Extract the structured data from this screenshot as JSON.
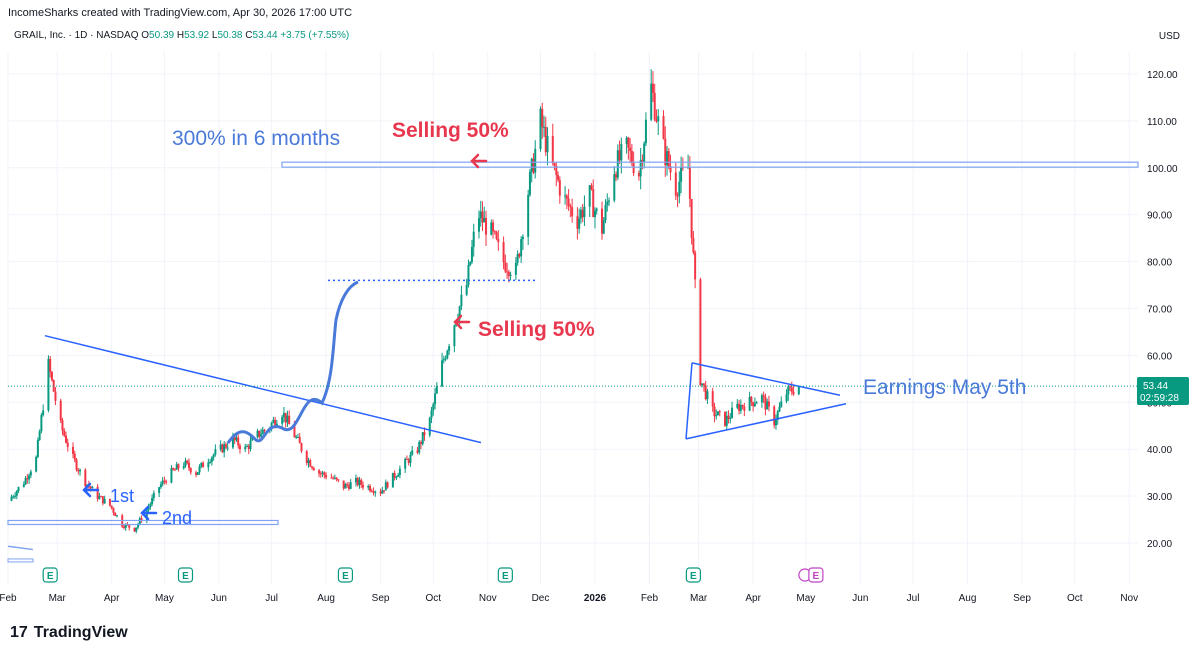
{
  "header": {
    "credit": "IncomeSharks created with TradingView.com, Apr 30, 2026 17:00 UTC"
  },
  "legend": {
    "symbol": "GRAIL, Inc. · 1D · NASDAQ",
    "open_label": "O",
    "open": "50.39",
    "high_label": "H",
    "high": "53.92",
    "low_label": "L",
    "low": "50.38",
    "close_label": "C",
    "close": "53.44",
    "change": "+3.75 (+7.55%)"
  },
  "currency": "USD",
  "price_tag": {
    "price": "53.44",
    "countdown": "02:59:28"
  },
  "annotations": {
    "gain": "300% in 6 months",
    "sell_top": "Selling 50%",
    "sell_mid": "Selling 50%",
    "first": "1st",
    "second": "2nd",
    "earnings": "Earnings May 5th"
  },
  "footer": {
    "logo": "17",
    "brand": "TradingView"
  },
  "colors": {
    "up": "#089981",
    "down": "#f23645",
    "trend": "#2962ff",
    "note_blue": "#4a7ad9",
    "note_red": "#e8384f",
    "earn_purple": "#c042c4"
  },
  "chart_data": {
    "type": "candlestick",
    "title": "",
    "xlabel": "",
    "ylabel": "",
    "ylim": [
      15,
      125
    ],
    "y_ticks": [
      "20.00",
      "30.00",
      "40.00",
      "50.00",
      "60.00",
      "70.00",
      "80.00",
      "90.00",
      "100.00",
      "110.00",
      "120.00"
    ],
    "x_ticks": [
      "Feb",
      "Mar",
      "Apr",
      "May",
      "Jun",
      "Jul",
      "Aug",
      "Sep",
      "Oct",
      "Nov",
      "Dec",
      "2026",
      "Feb",
      "Mar",
      "Apr",
      "May",
      "Jun",
      "Jul",
      "Aug",
      "Sep",
      "Oct",
      "Nov"
    ],
    "x_tick_dates": [
      "2025-02-01",
      "2025-03-01",
      "2025-04-01",
      "2025-05-01",
      "2025-06-01",
      "2025-07-01",
      "2025-08-01",
      "2025-09-01",
      "2025-10-01",
      "2025-11-01",
      "2025-12-01",
      "2026-01-01",
      "2026-02-01",
      "2026-03-01",
      "2026-04-01",
      "2026-05-01",
      "2026-06-01",
      "2026-07-01",
      "2026-08-01",
      "2026-09-01",
      "2026-10-01",
      "2026-11-01"
    ],
    "x_range": [
      "2025-02-01",
      "2026-11-06"
    ],
    "last_price": 53.44,
    "earnings_markers": [
      "2025-02-25",
      "2025-05-13",
      "2025-08-12",
      "2025-11-11",
      "2026-02-26"
    ],
    "earnings_upcoming": "2026-05-05",
    "closes": [
      {
        "date": "2025-02-01",
        "close": 29
      },
      {
        "date": "2025-02-10",
        "close": 33
      },
      {
        "date": "2025-02-17",
        "close": 38
      },
      {
        "date": "2025-02-24",
        "close": 58
      },
      {
        "date": "2025-03-03",
        "close": 45
      },
      {
        "date": "2025-03-10",
        "close": 38
      },
      {
        "date": "2025-03-17",
        "close": 33
      },
      {
        "date": "2025-03-24",
        "close": 30
      },
      {
        "date": "2025-03-31",
        "close": 28
      },
      {
        "date": "2025-04-07",
        "close": 24
      },
      {
        "date": "2025-04-14",
        "close": 23
      },
      {
        "date": "2025-04-21",
        "close": 27
      },
      {
        "date": "2025-04-28",
        "close": 32
      },
      {
        "date": "2025-05-05",
        "close": 35
      },
      {
        "date": "2025-05-12",
        "close": 37
      },
      {
        "date": "2025-05-19",
        "close": 35
      },
      {
        "date": "2025-05-26",
        "close": 38
      },
      {
        "date": "2025-06-02",
        "close": 40
      },
      {
        "date": "2025-06-09",
        "close": 42
      },
      {
        "date": "2025-06-16",
        "close": 40
      },
      {
        "date": "2025-06-23",
        "close": 43
      },
      {
        "date": "2025-06-30",
        "close": 45
      },
      {
        "date": "2025-07-07",
        "close": 48
      },
      {
        "date": "2025-07-14",
        "close": 43
      },
      {
        "date": "2025-07-21",
        "close": 38
      },
      {
        "date": "2025-07-28",
        "close": 35
      },
      {
        "date": "2025-08-04",
        "close": 34
      },
      {
        "date": "2025-08-11",
        "close": 32
      },
      {
        "date": "2025-08-18",
        "close": 33
      },
      {
        "date": "2025-08-25",
        "close": 32
      },
      {
        "date": "2025-09-01",
        "close": 31
      },
      {
        "date": "2025-09-08",
        "close": 34
      },
      {
        "date": "2025-09-15",
        "close": 37
      },
      {
        "date": "2025-09-22",
        "close": 40
      },
      {
        "date": "2025-09-29",
        "close": 46
      },
      {
        "date": "2025-10-06",
        "close": 58
      },
      {
        "date": "2025-10-13",
        "close": 67
      },
      {
        "date": "2025-10-20",
        "close": 75
      },
      {
        "date": "2025-10-24",
        "close": 85
      },
      {
        "date": "2025-10-27",
        "close": 90
      },
      {
        "date": "2025-11-03",
        "close": 86
      },
      {
        "date": "2025-11-10",
        "close": 80
      },
      {
        "date": "2025-11-17",
        "close": 78
      },
      {
        "date": "2025-11-24",
        "close": 95
      },
      {
        "date": "2025-12-01",
        "close": 110
      },
      {
        "date": "2025-12-08",
        "close": 100
      },
      {
        "date": "2025-12-15",
        "close": 93
      },
      {
        "date": "2025-12-22",
        "close": 89
      },
      {
        "date": "2025-12-29",
        "close": 94
      },
      {
        "date": "2026-01-05",
        "close": 87
      },
      {
        "date": "2026-01-12",
        "close": 100
      },
      {
        "date": "2026-01-19",
        "close": 104
      },
      {
        "date": "2026-01-26",
        "close": 99
      },
      {
        "date": "2026-02-02",
        "close": 117
      },
      {
        "date": "2026-02-09",
        "close": 104
      },
      {
        "date": "2026-02-16",
        "close": 96
      },
      {
        "date": "2026-02-23",
        "close": 100
      },
      {
        "date": "2026-03-02",
        "close": 55
      },
      {
        "date": "2026-03-09",
        "close": 48
      },
      {
        "date": "2026-03-16",
        "close": 46
      },
      {
        "date": "2026-03-23",
        "close": 49
      },
      {
        "date": "2026-03-30",
        "close": 50
      },
      {
        "date": "2026-04-06",
        "close": 51
      },
      {
        "date": "2026-04-13",
        "close": 46
      },
      {
        "date": "2026-04-20",
        "close": 52
      },
      {
        "date": "2026-04-27",
        "close": 53.44
      }
    ]
  }
}
